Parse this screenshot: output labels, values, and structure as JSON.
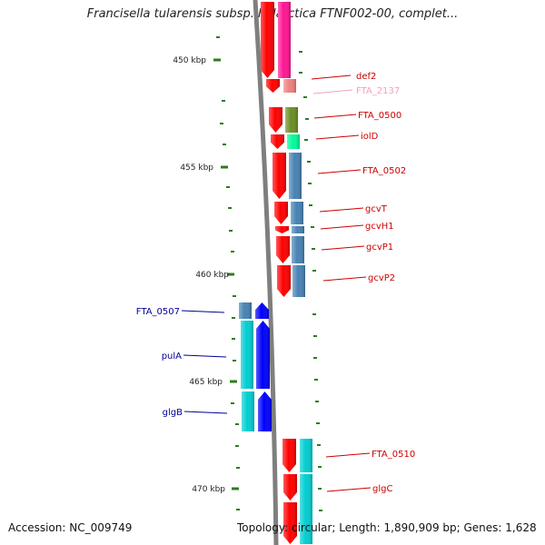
{
  "title": "Francisella tularensis subsp. holarctica FTNF002-00, complet...",
  "footer": {
    "accession": "Accession: NC_009749",
    "topology": "Topology: circular; Length: 1,890,909 bp; Genes: 1,628"
  },
  "colors": {
    "backbone": "#7f7f7f",
    "tick": "#2e7d1e",
    "forward_label": "#cc0000",
    "reverse_label": "#000099"
  },
  "scale": {
    "labels": [
      {
        "kbp": 450,
        "text": "450 kbp"
      },
      {
        "kbp": 455,
        "text": "455 kbp"
      },
      {
        "kbp": 460,
        "text": "460 kbp"
      },
      {
        "kbp": 465,
        "text": "465 kbp"
      },
      {
        "kbp": 470,
        "text": "470 kbp"
      }
    ]
  },
  "genes": [
    {
      "name": "def2",
      "label": "def2",
      "strand": "+",
      "color": "#ff0000",
      "cog_color": "#ff1493"
    },
    {
      "name": "FTA_2137",
      "label": "FTA_2137",
      "strand": "+",
      "color": "#ff0000",
      "cog_color": "#f08080"
    },
    {
      "name": "FTA_0500",
      "label": "FTA_0500",
      "strand": "+",
      "color": "#ff0000",
      "cog_color": "#6b8e23"
    },
    {
      "name": "iolD",
      "label": "iolD",
      "strand": "+",
      "color": "#ff0000",
      "cog_color": "#00fa9a"
    },
    {
      "name": "FTA_0502",
      "label": "FTA_0502",
      "strand": "+",
      "color": "#ff0000",
      "cog_color": "#4682b4"
    },
    {
      "name": "gcvT",
      "label": "gcvT",
      "strand": "+",
      "color": "#ff0000",
      "cog_color": "#4682b4"
    },
    {
      "name": "gcvH1",
      "label": "gcvH1",
      "strand": "+",
      "color": "#ff0000",
      "cog_color": "#4682b4"
    },
    {
      "name": "gcvP1",
      "label": "gcvP1",
      "strand": "+",
      "color": "#ff0000",
      "cog_color": "#4682b4"
    },
    {
      "name": "gcvP2",
      "label": "gcvP2",
      "strand": "+",
      "color": "#ff0000",
      "cog_color": "#4682b4"
    },
    {
      "name": "FTA_0507",
      "label": "FTA_0507",
      "strand": "-",
      "color": "#0000ff",
      "cog_color": "#4682b4"
    },
    {
      "name": "pulA",
      "label": "pulA",
      "strand": "-",
      "color": "#0000ff",
      "cog_color": "#00ced1"
    },
    {
      "name": "glgB",
      "label": "glgB",
      "strand": "-",
      "color": "#0000ff",
      "cog_color": "#00ced1"
    },
    {
      "name": "FTA_0510",
      "label": "FTA_0510",
      "strand": "+",
      "color": "#ff0000",
      "cog_color": "#00ced1"
    },
    {
      "name": "glgC",
      "label": "glgC",
      "strand": "+",
      "color": "#ff0000",
      "cog_color": "#00ced1"
    }
  ]
}
